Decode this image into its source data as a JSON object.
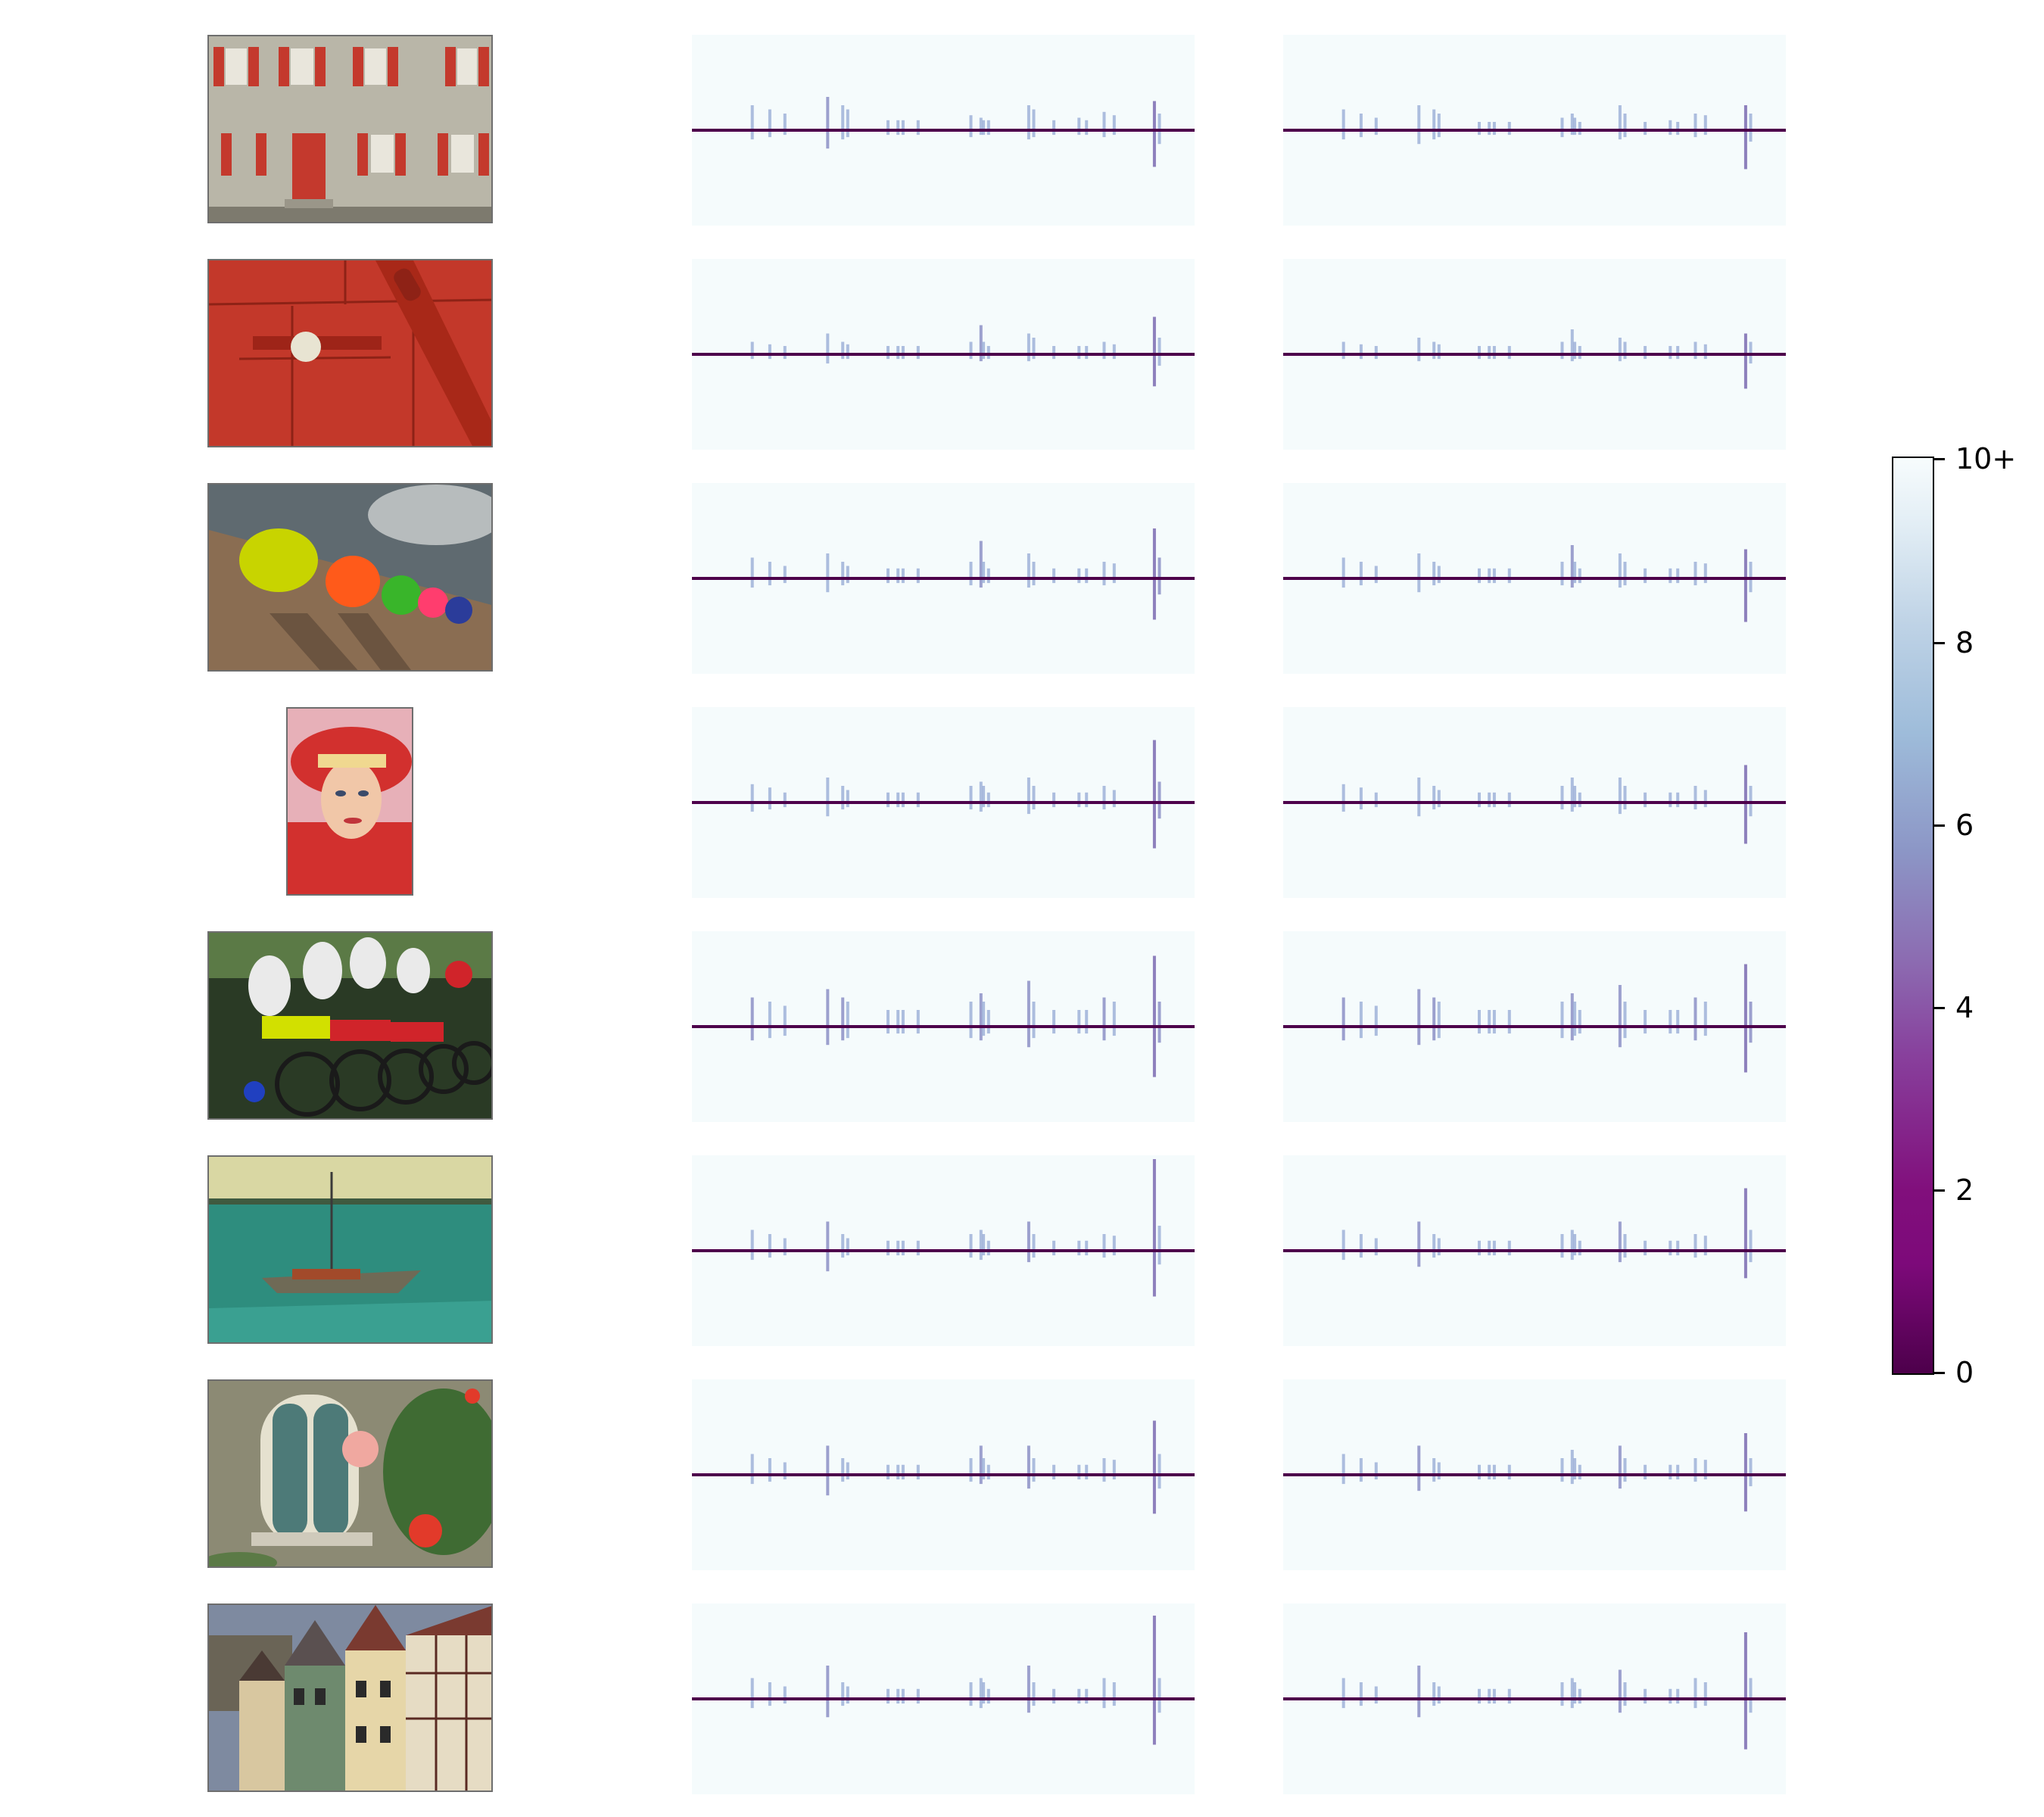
{
  "colorbar": {
    "ticks": [
      "0",
      "2",
      "4",
      "6",
      "8",
      "10+"
    ],
    "colormap": [
      "#4d004b",
      "#810f7c",
      "#88419d",
      "#8c6bb1",
      "#8c96c6",
      "#9ebcda",
      "#bfd3e6",
      "#e0ecf4",
      "#f7fcfd"
    ]
  },
  "rows": [
    {
      "image": "house-facade-red-shutters",
      "colors": [
        "#b9b6a8",
        "#c4392d",
        "#8a8578"
      ]
    },
    {
      "image": "red-door-with-knob",
      "colors": [
        "#c3382a",
        "#9e2418",
        "#e8e4d2"
      ]
    },
    {
      "image": "colorful-hats-on-wall",
      "colors": [
        "#5f6a70",
        "#c8d400",
        "#8a6d52"
      ]
    },
    {
      "image": "girl-in-red-hat",
      "colors": [
        "#d2302e",
        "#e7b0b8",
        "#f1c7a8"
      ]
    },
    {
      "image": "motocross-riders",
      "colors": [
        "#2a3a25",
        "#d0242a",
        "#eaeaea"
      ]
    },
    {
      "image": "sailboat-on-sea",
      "colors": [
        "#d9d7a3",
        "#2e8d7e",
        "#6f6a56"
      ]
    },
    {
      "image": "window-with-hibiscus",
      "colors": [
        "#8c8a74",
        "#4d7a78",
        "#e23a2a"
      ]
    },
    {
      "image": "half-timbered-houses",
      "colors": [
        "#7e8aa0",
        "#a63a33",
        "#e6dcc4"
      ]
    }
  ],
  "chart_data": [
    {
      "type": "heatmap",
      "color_scale": {
        "min": 0,
        "max": 10,
        "max_label": "10+"
      },
      "spike_positions": [
        0.12,
        0.155,
        0.185,
        0.27,
        0.3,
        0.31,
        0.39,
        0.41,
        0.42,
        0.45,
        0.555,
        0.575,
        0.58,
        0.59,
        0.67,
        0.68,
        0.72,
        0.77,
        0.785,
        0.82,
        0.84,
        0.92,
        0.93
      ],
      "panels_col1": [
        {
          "up": [
            0.3,
            0.25,
            0.2,
            0.4,
            0.3,
            0.25,
            0.12,
            0.12,
            0.12,
            0.12,
            0.18,
            0.15,
            0.12,
            0.12,
            0.3,
            0.25,
            0.12,
            0.15,
            0.12,
            0.22,
            0.18,
            0.35,
            0.2
          ],
          "down": [
            0.2,
            0.15,
            0.1,
            0.4,
            0.2,
            0.15,
            0.1,
            0.1,
            0.1,
            0.1,
            0.15,
            0.1,
            0.1,
            0.1,
            0.2,
            0.15,
            0.1,
            0.1,
            0.1,
            0.15,
            0.1,
            0.8,
            0.3
          ]
        },
        {
          "up": [
            0.15,
            0.12,
            0.1,
            0.25,
            0.15,
            0.12,
            0.1,
            0.1,
            0.1,
            0.1,
            0.15,
            0.35,
            0.15,
            0.1,
            0.25,
            0.2,
            0.1,
            0.1,
            0.1,
            0.15,
            0.12,
            0.45,
            0.2
          ],
          "down": [
            0.1,
            0.1,
            0.1,
            0.2,
            0.1,
            0.1,
            0.1,
            0.1,
            0.1,
            0.1,
            0.1,
            0.15,
            0.1,
            0.1,
            0.15,
            0.1,
            0.1,
            0.1,
            0.1,
            0.1,
            0.1,
            0.7,
            0.25
          ]
        },
        {
          "up": [
            0.25,
            0.2,
            0.15,
            0.3,
            0.2,
            0.15,
            0.12,
            0.12,
            0.12,
            0.12,
            0.2,
            0.45,
            0.2,
            0.12,
            0.3,
            0.2,
            0.12,
            0.12,
            0.12,
            0.2,
            0.18,
            0.6,
            0.25
          ],
          "down": [
            0.2,
            0.15,
            0.1,
            0.3,
            0.15,
            0.1,
            0.1,
            0.1,
            0.1,
            0.1,
            0.15,
            0.2,
            0.1,
            0.1,
            0.2,
            0.15,
            0.1,
            0.1,
            0.1,
            0.15,
            0.1,
            0.9,
            0.35
          ]
        },
        {
          "up": [
            0.22,
            0.18,
            0.12,
            0.3,
            0.2,
            0.15,
            0.12,
            0.12,
            0.12,
            0.12,
            0.2,
            0.25,
            0.2,
            0.12,
            0.3,
            0.2,
            0.12,
            0.12,
            0.12,
            0.2,
            0.15,
            0.75,
            0.25
          ],
          "down": [
            0.2,
            0.15,
            0.1,
            0.3,
            0.15,
            0.1,
            0.1,
            0.1,
            0.1,
            0.1,
            0.15,
            0.2,
            0.1,
            0.1,
            0.25,
            0.15,
            0.1,
            0.1,
            0.1,
            0.15,
            0.1,
            1.0,
            0.35
          ]
        },
        {
          "up": [
            0.35,
            0.3,
            0.25,
            0.45,
            0.35,
            0.3,
            0.2,
            0.2,
            0.2,
            0.2,
            0.3,
            0.4,
            0.3,
            0.2,
            0.55,
            0.3,
            0.2,
            0.2,
            0.2,
            0.35,
            0.3,
            0.85,
            0.3
          ],
          "down": [
            0.3,
            0.25,
            0.2,
            0.4,
            0.3,
            0.25,
            0.15,
            0.15,
            0.15,
            0.15,
            0.25,
            0.3,
            0.2,
            0.15,
            0.45,
            0.25,
            0.15,
            0.15,
            0.15,
            0.3,
            0.2,
            1.1,
            0.35
          ]
        },
        {
          "up": [
            0.25,
            0.2,
            0.15,
            0.35,
            0.2,
            0.15,
            0.12,
            0.12,
            0.12,
            0.12,
            0.2,
            0.25,
            0.2,
            0.12,
            0.35,
            0.2,
            0.12,
            0.12,
            0.12,
            0.2,
            0.18,
            1.1,
            0.3
          ],
          "down": [
            0.2,
            0.15,
            0.1,
            0.45,
            0.15,
            0.1,
            0.1,
            0.1,
            0.1,
            0.1,
            0.15,
            0.2,
            0.1,
            0.1,
            0.25,
            0.15,
            0.1,
            0.1,
            0.1,
            0.15,
            0.1,
            1.0,
            0.3
          ]
        },
        {
          "up": [
            0.25,
            0.2,
            0.15,
            0.35,
            0.2,
            0.15,
            0.12,
            0.12,
            0.12,
            0.12,
            0.2,
            0.35,
            0.2,
            0.12,
            0.35,
            0.2,
            0.12,
            0.12,
            0.12,
            0.2,
            0.18,
            0.65,
            0.25
          ],
          "down": [
            0.2,
            0.15,
            0.1,
            0.45,
            0.15,
            0.1,
            0.1,
            0.1,
            0.1,
            0.1,
            0.15,
            0.2,
            0.1,
            0.1,
            0.3,
            0.15,
            0.1,
            0.1,
            0.1,
            0.15,
            0.1,
            0.85,
            0.3
          ]
        },
        {
          "up": [
            0.25,
            0.2,
            0.15,
            0.4,
            0.2,
            0.15,
            0.12,
            0.12,
            0.12,
            0.12,
            0.2,
            0.25,
            0.2,
            0.12,
            0.4,
            0.2,
            0.12,
            0.12,
            0.12,
            0.25,
            0.2,
            1.0,
            0.25
          ],
          "down": [
            0.2,
            0.15,
            0.1,
            0.4,
            0.15,
            0.1,
            0.1,
            0.1,
            0.1,
            0.1,
            0.15,
            0.2,
            0.1,
            0.1,
            0.3,
            0.15,
            0.1,
            0.1,
            0.1,
            0.2,
            0.15,
            1.0,
            0.3
          ]
        }
      ],
      "panels_col2": [
        {
          "up": [
            0.25,
            0.2,
            0.15,
            0.3,
            0.25,
            0.2,
            0.1,
            0.1,
            0.1,
            0.1,
            0.15,
            0.2,
            0.15,
            0.1,
            0.3,
            0.2,
            0.1,
            0.12,
            0.1,
            0.2,
            0.18,
            0.3,
            0.2
          ],
          "down": [
            0.2,
            0.15,
            0.1,
            0.3,
            0.2,
            0.15,
            0.1,
            0.1,
            0.1,
            0.1,
            0.15,
            0.1,
            0.1,
            0.1,
            0.2,
            0.15,
            0.1,
            0.1,
            0.1,
            0.15,
            0.1,
            0.85,
            0.25
          ]
        },
        {
          "up": [
            0.15,
            0.12,
            0.1,
            0.2,
            0.15,
            0.12,
            0.1,
            0.1,
            0.1,
            0.1,
            0.15,
            0.3,
            0.15,
            0.1,
            0.2,
            0.15,
            0.1,
            0.1,
            0.1,
            0.15,
            0.12,
            0.25,
            0.15
          ],
          "down": [
            0.1,
            0.1,
            0.1,
            0.15,
            0.1,
            0.1,
            0.1,
            0.1,
            0.1,
            0.1,
            0.1,
            0.15,
            0.1,
            0.1,
            0.15,
            0.1,
            0.1,
            0.1,
            0.1,
            0.1,
            0.1,
            0.75,
            0.2
          ]
        },
        {
          "up": [
            0.25,
            0.2,
            0.15,
            0.3,
            0.2,
            0.15,
            0.12,
            0.12,
            0.12,
            0.12,
            0.2,
            0.4,
            0.2,
            0.12,
            0.3,
            0.2,
            0.12,
            0.12,
            0.12,
            0.2,
            0.18,
            0.35,
            0.2
          ],
          "down": [
            0.2,
            0.15,
            0.1,
            0.3,
            0.15,
            0.1,
            0.1,
            0.1,
            0.1,
            0.1,
            0.15,
            0.2,
            0.1,
            0.1,
            0.2,
            0.15,
            0.1,
            0.1,
            0.1,
            0.15,
            0.1,
            0.95,
            0.3
          ]
        },
        {
          "up": [
            0.22,
            0.18,
            0.12,
            0.3,
            0.2,
            0.15,
            0.12,
            0.12,
            0.12,
            0.12,
            0.2,
            0.3,
            0.2,
            0.12,
            0.3,
            0.2,
            0.12,
            0.12,
            0.12,
            0.2,
            0.15,
            0.45,
            0.2
          ],
          "down": [
            0.2,
            0.15,
            0.1,
            0.3,
            0.15,
            0.1,
            0.1,
            0.1,
            0.1,
            0.1,
            0.15,
            0.2,
            0.1,
            0.1,
            0.25,
            0.15,
            0.1,
            0.1,
            0.1,
            0.15,
            0.1,
            0.9,
            0.3
          ]
        },
        {
          "up": [
            0.35,
            0.3,
            0.25,
            0.45,
            0.35,
            0.3,
            0.2,
            0.2,
            0.2,
            0.2,
            0.3,
            0.4,
            0.3,
            0.2,
            0.5,
            0.3,
            0.2,
            0.2,
            0.2,
            0.35,
            0.3,
            0.75,
            0.3
          ],
          "down": [
            0.3,
            0.25,
            0.2,
            0.4,
            0.3,
            0.25,
            0.15,
            0.15,
            0.15,
            0.15,
            0.25,
            0.3,
            0.2,
            0.15,
            0.45,
            0.25,
            0.15,
            0.15,
            0.15,
            0.3,
            0.2,
            1.0,
            0.35
          ]
        },
        {
          "up": [
            0.25,
            0.2,
            0.15,
            0.35,
            0.2,
            0.15,
            0.12,
            0.12,
            0.12,
            0.12,
            0.2,
            0.25,
            0.2,
            0.12,
            0.35,
            0.2,
            0.12,
            0.12,
            0.12,
            0.2,
            0.18,
            0.75,
            0.25
          ],
          "down": [
            0.2,
            0.15,
            0.1,
            0.35,
            0.15,
            0.1,
            0.1,
            0.1,
            0.1,
            0.1,
            0.15,
            0.2,
            0.1,
            0.1,
            0.25,
            0.15,
            0.1,
            0.1,
            0.1,
            0.15,
            0.1,
            0.6,
            0.25
          ]
        },
        {
          "up": [
            0.25,
            0.2,
            0.15,
            0.35,
            0.2,
            0.15,
            0.12,
            0.12,
            0.12,
            0.12,
            0.2,
            0.3,
            0.2,
            0.12,
            0.35,
            0.2,
            0.12,
            0.12,
            0.12,
            0.2,
            0.18,
            0.5,
            0.2
          ],
          "down": [
            0.2,
            0.15,
            0.1,
            0.35,
            0.15,
            0.1,
            0.1,
            0.1,
            0.1,
            0.1,
            0.15,
            0.2,
            0.1,
            0.1,
            0.3,
            0.15,
            0.1,
            0.1,
            0.1,
            0.15,
            0.1,
            0.8,
            0.25
          ]
        },
        {
          "up": [
            0.25,
            0.2,
            0.15,
            0.4,
            0.2,
            0.15,
            0.12,
            0.12,
            0.12,
            0.12,
            0.2,
            0.25,
            0.2,
            0.12,
            0.35,
            0.2,
            0.12,
            0.12,
            0.12,
            0.25,
            0.2,
            0.8,
            0.25
          ],
          "down": [
            0.2,
            0.15,
            0.1,
            0.4,
            0.15,
            0.1,
            0.1,
            0.1,
            0.1,
            0.1,
            0.15,
            0.2,
            0.1,
            0.1,
            0.3,
            0.15,
            0.1,
            0.1,
            0.1,
            0.2,
            0.15,
            1.1,
            0.3
          ]
        }
      ]
    }
  ]
}
